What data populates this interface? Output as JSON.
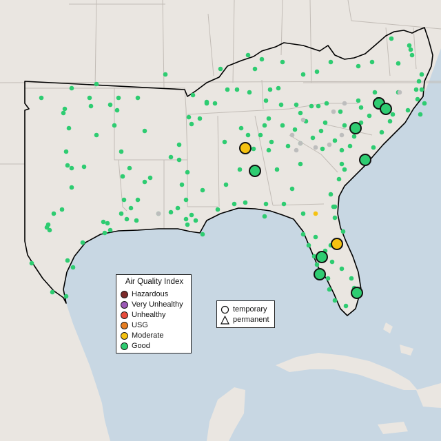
{
  "colors": {
    "ocean": "#c8d7e3",
    "land": "#eae6e1",
    "border": "#c2bcb6",
    "region_outline": "#000000",
    "good": "#2ecc71",
    "moderate": "#f5c211",
    "usg": "#e67e22",
    "unhealthy": "#e74c3c",
    "very_unhealthy": "#9b59b6",
    "hazardous": "#7b2a2a",
    "no_data": "#bdbdbd"
  },
  "legend": {
    "title": "Air Quality Index",
    "items": [
      {
        "label": "Hazardous",
        "color": "#7b2a2a"
      },
      {
        "label": "Very Unhealthy",
        "color": "#9b59b6"
      },
      {
        "label": "Unhealthy",
        "color": "#e74c3c"
      },
      {
        "label": "USG",
        "color": "#e67e22"
      },
      {
        "label": "Moderate",
        "color": "#f5c211"
      },
      {
        "label": "Good",
        "color": "#2ecc71"
      }
    ]
  },
  "shape_legend": {
    "items": [
      {
        "label": "temporary",
        "icon": "circle-icon"
      },
      {
        "label": "permanent",
        "icon": "triangle-icon"
      }
    ]
  }
}
